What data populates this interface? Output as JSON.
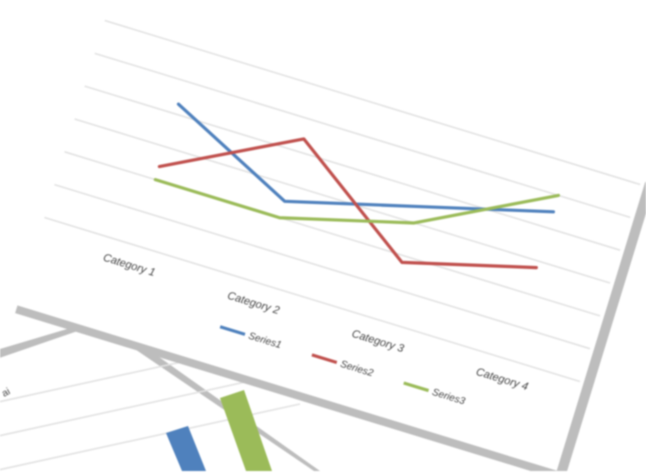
{
  "chart_data": [
    {
      "type": "line",
      "categories": [
        "Category 1",
        "Category 2",
        "Category 3",
        "Category 4"
      ],
      "series": [
        {
          "name": "Series1",
          "values": [
            4.3,
            2.5,
            3.5,
            4.5
          ],
          "color": "#4F81BD"
        },
        {
          "name": "Series2",
          "values": [
            2.4,
            4.4,
            1.8,
            2.8
          ],
          "color": "#C0504D"
        },
        {
          "name": "Series3",
          "values": [
            2.0,
            2.0,
            3.0,
            5.0
          ],
          "color": "#9BBB59"
        }
      ],
      "ylim": [
        0,
        6
      ],
      "grid": true,
      "legend": "bottom"
    },
    {
      "type": "bar",
      "title": "",
      "series": [
        {
          "name": "Series1",
          "color": "#4F81BD"
        },
        {
          "name": "Series3",
          "color": "#9BBB59"
        }
      ],
      "ylabel_partial": "ai",
      "grid": true
    }
  ]
}
